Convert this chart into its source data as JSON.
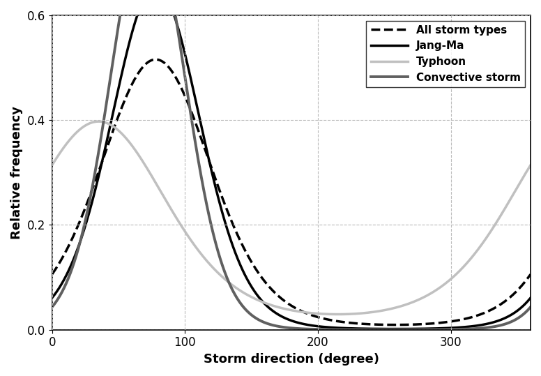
{
  "title": "",
  "xlabel": "Storm direction (degree)",
  "ylabel": "Relative frequency",
  "xlim": [
    0,
    360
  ],
  "ylim": [
    0,
    0.6
  ],
  "xticks": [
    0,
    100,
    200,
    300
  ],
  "yticks": [
    0,
    0.2,
    0.4,
    0.6
  ],
  "grid_color": "#bbbbbb",
  "grid_linestyle": "--",
  "background_color": "#ffffff",
  "curves": [
    {
      "label": "All storm types",
      "color": "#000000",
      "linewidth": 2.5,
      "linestyle": "--",
      "mu_deg": 78,
      "kappa": 2.0
    },
    {
      "label": "Jang-Ma",
      "color": "#000000",
      "linewidth": 2.5,
      "linestyle": "-",
      "mu_deg": 78,
      "kappa": 3.0
    },
    {
      "label": "Typhoon",
      "color": "#c0c0c0",
      "linewidth": 2.5,
      "linestyle": "-",
      "mu_deg": 35,
      "kappa": 1.3
    },
    {
      "label": "Convective storm",
      "color": "#606060",
      "linewidth": 2.8,
      "linestyle": "-",
      "mu_deg": 72,
      "kappa": 4.2
    }
  ],
  "legend_loc": "upper right",
  "legend_fontsize": 11,
  "tick_fontsize": 12,
  "label_fontsize": 13
}
